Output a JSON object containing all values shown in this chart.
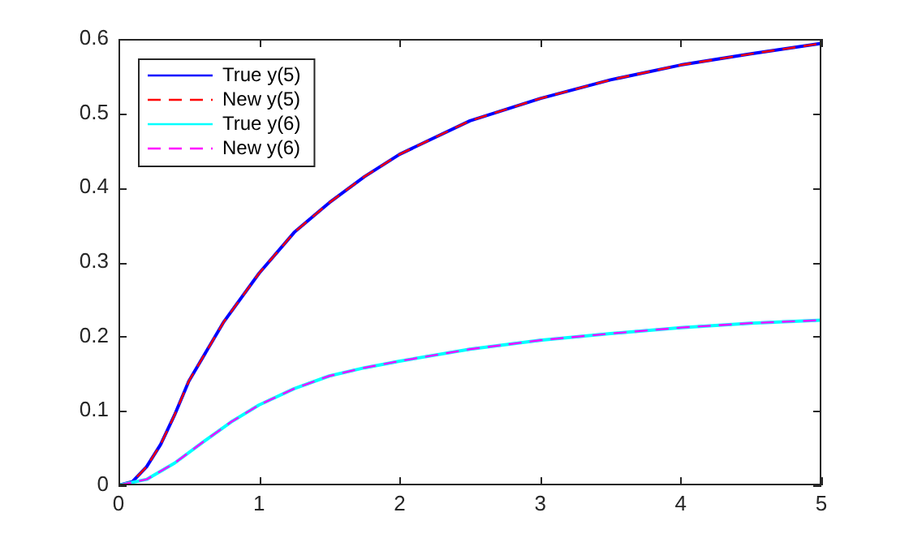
{
  "chart_data": {
    "type": "line",
    "xlim": [
      0,
      5
    ],
    "xticks": [
      0,
      1,
      2,
      3,
      4,
      5
    ],
    "ylim": [
      0,
      0.6
    ],
    "yticks": [
      0,
      0.1,
      0.2,
      0.3,
      0.4,
      0.5,
      0.6
    ],
    "grid": false,
    "legend": "top left",
    "marker": "none",
    "series": [
      {
        "name": "True y(5)",
        "color": "#0000ff",
        "line_style": "solid",
        "x": [
          0,
          0.1,
          0.2,
          0.3,
          0.4,
          0.5,
          0.75,
          1,
          1.25,
          1.5,
          1.75,
          2,
          2.5,
          3,
          3.5,
          4,
          4.5,
          5
        ],
        "values": [
          0,
          0.005,
          0.025,
          0.055,
          0.095,
          0.14,
          0.22,
          0.285,
          0.34,
          0.38,
          0.415,
          0.445,
          0.49,
          0.52,
          0.545,
          0.565,
          0.58,
          0.594
        ]
      },
      {
        "name": "New y(5)",
        "color": "#ff0000",
        "line_style": "dashed",
        "x": [
          0,
          0.1,
          0.2,
          0.3,
          0.4,
          0.5,
          0.75,
          1,
          1.25,
          1.5,
          1.75,
          2,
          2.5,
          3,
          3.5,
          4,
          4.5,
          5
        ],
        "values": [
          0,
          0.005,
          0.025,
          0.055,
          0.095,
          0.14,
          0.22,
          0.285,
          0.34,
          0.38,
          0.415,
          0.445,
          0.49,
          0.52,
          0.545,
          0.565,
          0.58,
          0.594
        ]
      },
      {
        "name": "True y(6)",
        "color": "#00ffff",
        "line_style": "solid",
        "x": [
          0,
          0.2,
          0.4,
          0.6,
          0.8,
          1,
          1.25,
          1.5,
          1.75,
          2,
          2.5,
          3,
          3.5,
          4,
          4.5,
          5
        ],
        "values": [
          0,
          0.008,
          0.03,
          0.058,
          0.085,
          0.108,
          0.13,
          0.147,
          0.158,
          0.167,
          0.183,
          0.195,
          0.204,
          0.212,
          0.218,
          0.222
        ]
      },
      {
        "name": "New y(6)",
        "color": "#ff00ff",
        "line_style": "dashed",
        "x": [
          0,
          0.2,
          0.4,
          0.6,
          0.8,
          1,
          1.25,
          1.5,
          1.75,
          2,
          2.5,
          3,
          3.5,
          4,
          4.5,
          5
        ],
        "values": [
          0,
          0.008,
          0.03,
          0.058,
          0.085,
          0.108,
          0.13,
          0.147,
          0.158,
          0.167,
          0.183,
          0.195,
          0.204,
          0.212,
          0.218,
          0.222
        ]
      }
    ]
  }
}
